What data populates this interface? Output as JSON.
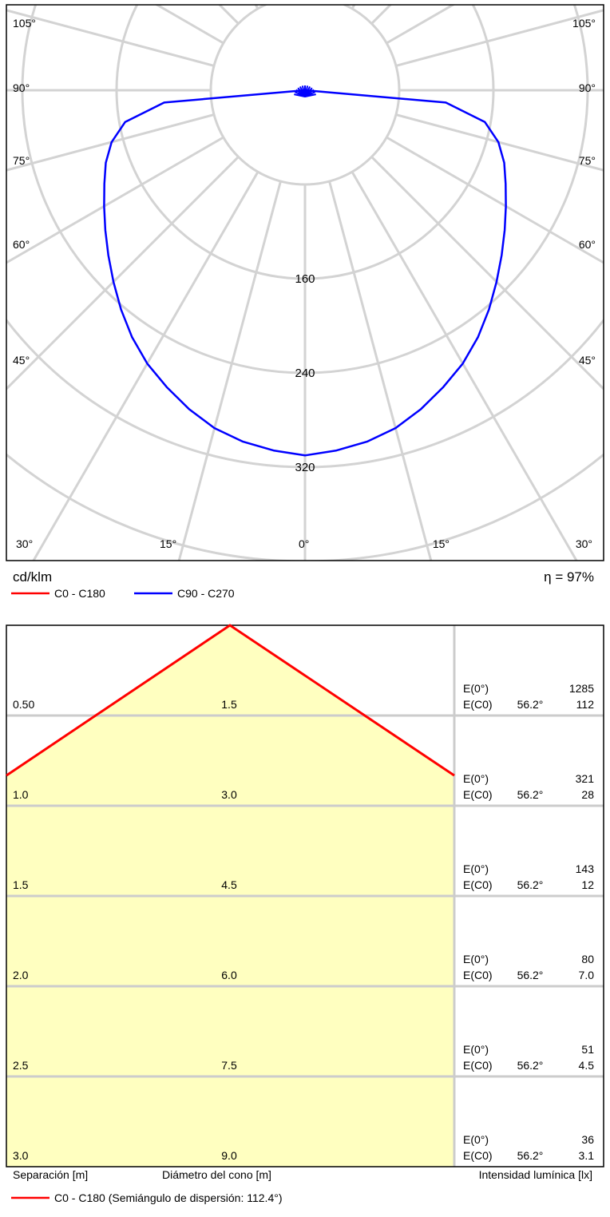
{
  "chart_data": [
    {
      "type": "polar",
      "radial_unit": "cd/klm",
      "radial_ticks": [
        "160",
        "240",
        "320"
      ],
      "radial_tick_values": [
        160,
        240,
        320
      ],
      "angle_ticks_left": [
        "105°",
        "90°",
        "75°",
        "60°",
        "45°",
        "30°",
        "15°",
        "0°"
      ],
      "angle_ticks_right": [
        "105°",
        "90°",
        "75°",
        "60°",
        "45°",
        "30°",
        "15°"
      ],
      "efficiency": "η = 97%",
      "legend": [
        {
          "label": "C0 - C180",
          "color": "#ff0000"
        },
        {
          "label": "C90 - C270",
          "color": "#0000ff"
        }
      ],
      "series": [
        {
          "name": "C90 - C270",
          "color": "#0000ff",
          "angles_deg": [
            0,
            5,
            10,
            15,
            20,
            25,
            30,
            35,
            40,
            45,
            50,
            55,
            60,
            65,
            70,
            75,
            80,
            85,
            90
          ],
          "values": [
            310,
            307,
            303,
            297,
            288,
            278,
            268,
            256,
            243,
            230,
            218,
            207,
            197,
            188,
            180,
            170,
            155,
            120,
            0
          ]
        }
      ]
    },
    {
      "type": "table",
      "rows": [
        {
          "sep": "0.50",
          "diam": "1.5",
          "e0": "1285",
          "ec0": "112",
          "ang": "56.2°"
        },
        {
          "sep": "1.0",
          "diam": "3.0",
          "e0": "321",
          "ec0": "28",
          "ang": "56.2°"
        },
        {
          "sep": "1.5",
          "diam": "4.5",
          "e0": "143",
          "ec0": "12",
          "ang": "56.2°"
        },
        {
          "sep": "2.0",
          "diam": "6.0",
          "e0": "80",
          "ec0": "7.0",
          "ang": "56.2°"
        },
        {
          "sep": "2.5",
          "diam": "7.5",
          "e0": "51",
          "ec0": "4.5",
          "ang": "56.2°"
        },
        {
          "sep": "3.0",
          "diam": "9.0",
          "e0": "36",
          "ec0": "3.1",
          "ang": "56.2°"
        }
      ],
      "e0_label": "E(0°)",
      "ec0_label": "E(C0)",
      "footer": {
        "separation": "Separación [m]",
        "diameter": "Diámetro del cono [m]",
        "intensity": "Intensidad lumínica [lx]"
      },
      "legend": {
        "label": "C0 - C180 (Semiángulo de dispersión: 112.4°)",
        "color": "#ff0000"
      }
    }
  ]
}
